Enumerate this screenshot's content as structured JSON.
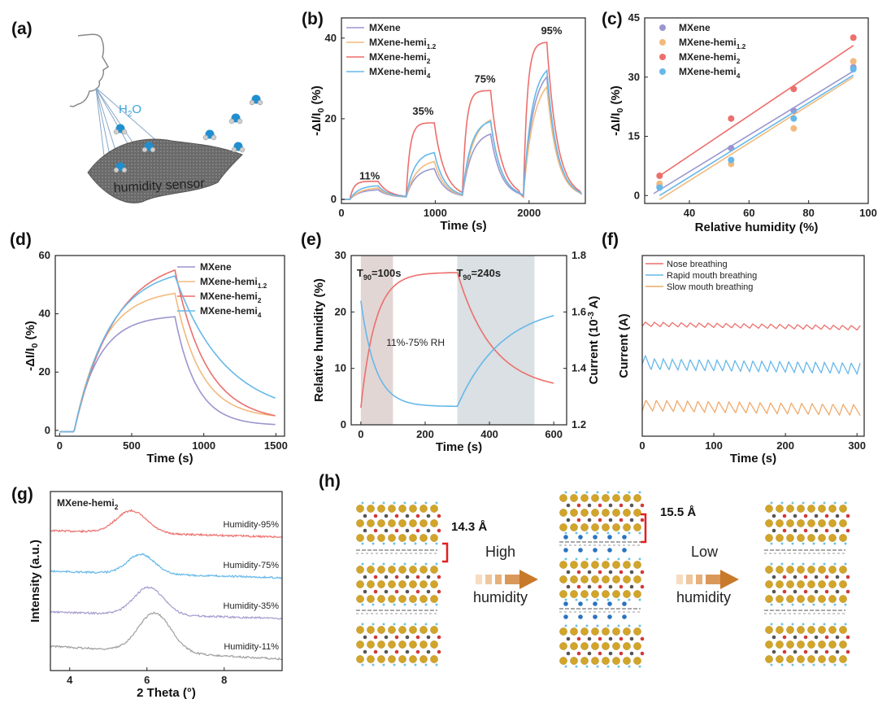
{
  "colors": {
    "MXene": "#9a96cf",
    "MXene-hemi1.2": "#f2ba7d",
    "MXene-hemi2": "#ec6f6c",
    "MXene-hemi4": "#66b8ea",
    "Nose": "#ec6f6c",
    "Rapid": "#66b8ea",
    "Slow": "#f0a96a",
    "xrd95": "#ec6f6c",
    "xrd75": "#66b8ea",
    "xrd35": "#a89ccf",
    "xrd11": "#a0a0a0",
    "ti": "#d2a52a",
    "o": "#d03a3a",
    "c": "#555555",
    "h": "#6ec4e2",
    "w": "#2a73c0",
    "arrow": "#cf8b3e"
  },
  "panel_labels": [
    "(a)",
    "(b)",
    "(c)",
    "(d)",
    "(e)",
    "(f)",
    "(g)",
    "(h)"
  ],
  "panel_a": {
    "water_label": "H",
    "water_sub": "2",
    "water_tail": "O",
    "sensor_label": "humidity sensor"
  },
  "panel_h": {
    "spacing_1": "14.3 Å",
    "spacing_2": "15.5 Å",
    "arrow1_line1": "High",
    "arrow1_line2": "humidity",
    "arrow2_line1": "Low",
    "arrow2_line2": "humidity"
  },
  "chart_data": [
    {
      "panel": "(b)",
      "type": "line",
      "xlabel": "Time (s)",
      "ylabel": "-ΔI/I",
      "ylabel_sub": "0",
      "ylabel_tail": " (%)",
      "xlim": [
        0,
        2600
      ],
      "ylim": [
        -1,
        45
      ],
      "xticks": [
        0,
        1000,
        2000
      ],
      "yticks": [
        0,
        20,
        40
      ],
      "annotations": [
        {
          "text": "11%",
          "x": 300,
          "y": 5
        },
        {
          "text": "35%",
          "x": 870,
          "y": 21
        },
        {
          "text": "75%",
          "x": 1530,
          "y": 29
        },
        {
          "text": "95%",
          "x": 2240,
          "y": 41
        }
      ],
      "steps": [
        [
          100,
          400,
          700
        ],
        [
          700,
          1000,
          1300
        ],
        [
          1300,
          1600,
          1900
        ],
        [
          1950,
          2200,
          2550
        ]
      ],
      "series": [
        {
          "name": "MXene",
          "sub": "",
          "color_key": "MXene",
          "peaks": [
            2.5,
            8,
            17,
            33
          ],
          "tau": 100
        },
        {
          "name": "MXene-hemi",
          "sub": "1.2",
          "color_key": "MXene-hemi1.2",
          "peaks": [
            3,
            10,
            21,
            31
          ],
          "tau": 110
        },
        {
          "name": "MXene-hemi",
          "sub": "2",
          "color_key": "MXene-hemi2",
          "peaks": [
            4.5,
            19,
            27,
            39
          ],
          "tau": 40
        },
        {
          "name": "MXene-hemi",
          "sub": "4",
          "color_key": "MXene-hemi4",
          "peaks": [
            3.5,
            12,
            20,
            34
          ],
          "tau": 90
        }
      ]
    },
    {
      "panel": "(c)",
      "type": "scatter",
      "xlabel": "Relative humidity (%)",
      "ylabel": "-ΔI/I",
      "ylabel_sub": "0",
      "ylabel_tail": " (%)",
      "xlim": [
        25,
        100
      ],
      "ylim": [
        -2,
        45
      ],
      "xticks": [
        40,
        60,
        80,
        100
      ],
      "yticks": [
        0,
        15,
        30,
        45
      ],
      "x": [
        30,
        54,
        75,
        95
      ],
      "series": [
        {
          "name": "MXene",
          "sub": "",
          "color_key": "MXene",
          "values": [
            2.5,
            12,
            21.5,
            32.5
          ],
          "fit": [
            [
              28,
              0.5
            ],
            [
              95,
              31.5
            ]
          ]
        },
        {
          "name": "MXene-hemi",
          "sub": "1.2",
          "color_key": "MXene-hemi1.2",
          "values": [
            3,
            8,
            17,
            34
          ],
          "fit": [
            [
              30,
              -1
            ],
            [
              95,
              30
            ]
          ]
        },
        {
          "name": "MXene-hemi",
          "sub": "2",
          "color_key": "MXene-hemi2",
          "values": [
            5,
            19.5,
            27,
            40
          ],
          "fit": [
            [
              30,
              5
            ],
            [
              95,
              38
            ]
          ]
        },
        {
          "name": "MXene-hemi",
          "sub": "4",
          "color_key": "MXene-hemi4",
          "values": [
            2,
            9,
            19.5,
            32
          ],
          "fit": [
            [
              30,
              0
            ],
            [
              95,
              30.5
            ]
          ]
        }
      ]
    },
    {
      "panel": "(d)",
      "type": "line",
      "xlabel": "Time (s)",
      "ylabel": "-ΔI/I",
      "ylabel_sub": "0",
      "ylabel_tail": " (%)",
      "xlim": [
        -30,
        1560
      ],
      "ylim": [
        -2,
        60
      ],
      "xticks": [
        0,
        500,
        1000,
        1500
      ],
      "yticks": [
        0,
        20,
        40,
        60
      ],
      "rise_start": 100,
      "rise_end": 800,
      "end": 1500,
      "series": [
        {
          "name": "MXene",
          "sub": "",
          "color_key": "MXene",
          "peak": 39,
          "tau_rise": 170,
          "tau_fall": 150,
          "end_value": 2
        },
        {
          "name": "MXene-hemi",
          "sub": "1.2",
          "color_key": "MXene-hemi1.2",
          "peak": 47,
          "tau_rise": 200,
          "tau_fall": 180,
          "end_value": 5
        },
        {
          "name": "MXene-hemi",
          "sub": "2",
          "color_key": "MXene-hemi2",
          "peak": 55,
          "tau_rise": 280,
          "tau_fall": 220,
          "end_value": 5
        },
        {
          "name": "MXene-hemi",
          "sub": "4",
          "color_key": "MXene-hemi4",
          "peak": 53,
          "tau_rise": 250,
          "tau_fall": 350,
          "end_value": 11
        }
      ]
    },
    {
      "panel": "(e)",
      "type": "line",
      "xlabel": "Time (s)",
      "ylabel_left": "Relative humidity (%)",
      "ylabel_right": "Current (10",
      "ylabel_right_sup": "-3",
      "ylabel_right_tail": " A)",
      "xlim": [
        -30,
        640
      ],
      "ylim_left": [
        0,
        30
      ],
      "ylim_right": [
        1.2,
        1.8
      ],
      "xticks": [
        0,
        200,
        400,
        600
      ],
      "yticks_left": [
        0,
        10,
        20,
        30
      ],
      "yticks_right": [
        1.2,
        1.4,
        1.6,
        1.8
      ],
      "shaded": [
        [
          0,
          100
        ],
        [
          300,
          540
        ]
      ],
      "t90_labels": [
        {
          "text": "T",
          "sub": "90",
          "tail": "=100s",
          "x": 0
        },
        {
          "text": "T",
          "sub": "90",
          "tail": "=240s",
          "x": 310
        }
      ],
      "center_label": "11%-75% RH",
      "humidity": {
        "rise": [
          0,
          300
        ],
        "start": 3,
        "peak": 27,
        "tau_rise": 45,
        "fall_end": 600,
        "end": 6,
        "tau_fall": 110
      },
      "current": {
        "rise": [
          0,
          300
        ],
        "start": 1.64,
        "low": 1.265,
        "tau_fall": 45,
        "end": 600,
        "high": 1.63,
        "tau_rise": 140
      }
    },
    {
      "panel": "(f)",
      "type": "line",
      "xlabel": "Time (s)",
      "ylabel": "Current (A)",
      "xlim": [
        0,
        310
      ],
      "xticks": [
        0,
        100,
        200,
        300
      ],
      "series": [
        {
          "name": "Nose breathing",
          "color_key": "Nose",
          "baseline": 0.62,
          "amplitude": 0.012,
          "period": 12.5
        },
        {
          "name": "Rapid mouth breathing",
          "color_key": "Rapid",
          "baseline": 0.4,
          "amplitude": 0.03,
          "period": 12.5
        },
        {
          "name": "Slow mouth breathing",
          "color_key": "Slow",
          "baseline": 0.17,
          "amplitude": 0.03,
          "period": 14.5
        }
      ]
    },
    {
      "panel": "(g)",
      "type": "line",
      "xlabel": "2 Theta (°)",
      "ylabel": "Intensity (a.u.)",
      "title": "MXene-hemi",
      "title_sub": "2",
      "xlim": [
        3.5,
        9.5
      ],
      "xticks": [
        4,
        6,
        8
      ],
      "series": [
        {
          "name": "Humidity-95%",
          "color_key": "xrd95",
          "peak": 5.6,
          "offset": 3,
          "height": 0.34,
          "width": 0.55
        },
        {
          "name": "Humidity-75%",
          "color_key": "xrd75",
          "peak": 5.85,
          "offset": 2,
          "height": 0.3,
          "width": 0.5
        },
        {
          "name": "Humidity-35%",
          "color_key": "xrd35",
          "peak": 6.05,
          "offset": 1,
          "height": 0.42,
          "width": 0.55
        },
        {
          "name": "Humidity-11%",
          "color_key": "xrd11",
          "peak": 6.2,
          "offset": 0,
          "height": 0.6,
          "width": 0.6
        }
      ]
    }
  ]
}
